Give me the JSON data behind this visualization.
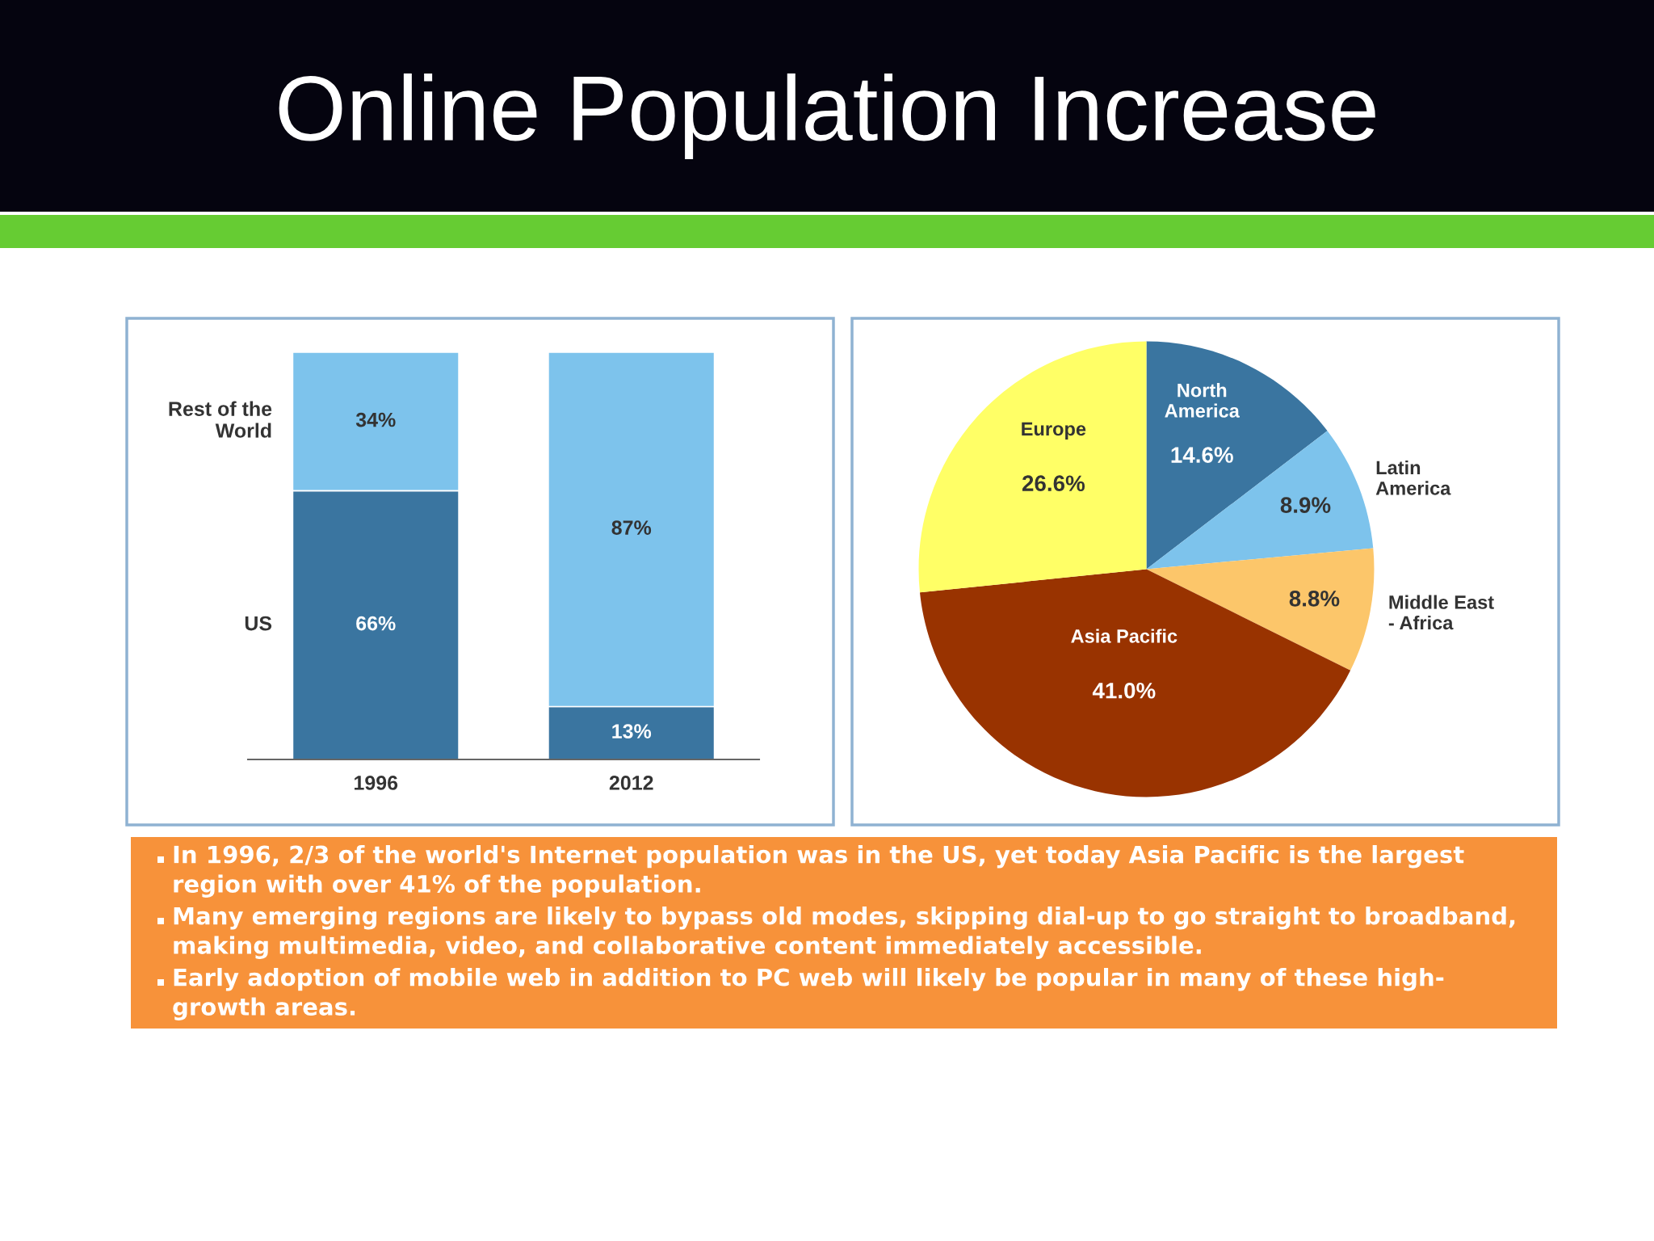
{
  "chart_data": [
    {
      "type": "bar",
      "title": "Online Population Increase",
      "categories": [
        "1996",
        "2012"
      ],
      "stacked": true,
      "ylim": [
        0,
        100
      ],
      "tick_labels": "x",
      "series": [
        {
          "name": "US",
          "color": "#3a75a0",
          "values": [
            66,
            13
          ],
          "value_labels": [
            "66%",
            "13%"
          ]
        },
        {
          "name": "Rest of the\nWorld",
          "color": "#7dc3ec",
          "values": [
            34,
            87
          ],
          "value_labels": [
            "34%",
            "87%"
          ]
        }
      ]
    },
    {
      "type": "pie",
      "categories": [
        "North\nAmerica",
        "Latin\nAmerica",
        "Middle East\n- Africa",
        "Asia Pacific",
        "Europe"
      ],
      "values": [
        14.6,
        8.9,
        8.8,
        41.0,
        26.6
      ],
      "colors": [
        "#3a75a0",
        "#7dc3ec",
        "#fcc66a",
        "#993300",
        "#ffff66"
      ],
      "value_labels": [
        "14.6%",
        "8.9%",
        "8.8%",
        "41.0%",
        "26.6%"
      ]
    },
    {
      "type": "other",
      "annotations": [
        "In 1996, 2/3 of the world's Internet population was in the US, yet today Asia Pacific is the largest\nregion with over 41% of the population.",
        "Many emerging regions are likely to bypass old modes, skipping dial-up to go straight to broadband,\nmaking multimedia, video, and collaborative content immediately accessible.",
        "Early adoption of mobile web in addition to PC web will likely be popular in many of these high-\ngrowth areas."
      ]
    }
  ]
}
